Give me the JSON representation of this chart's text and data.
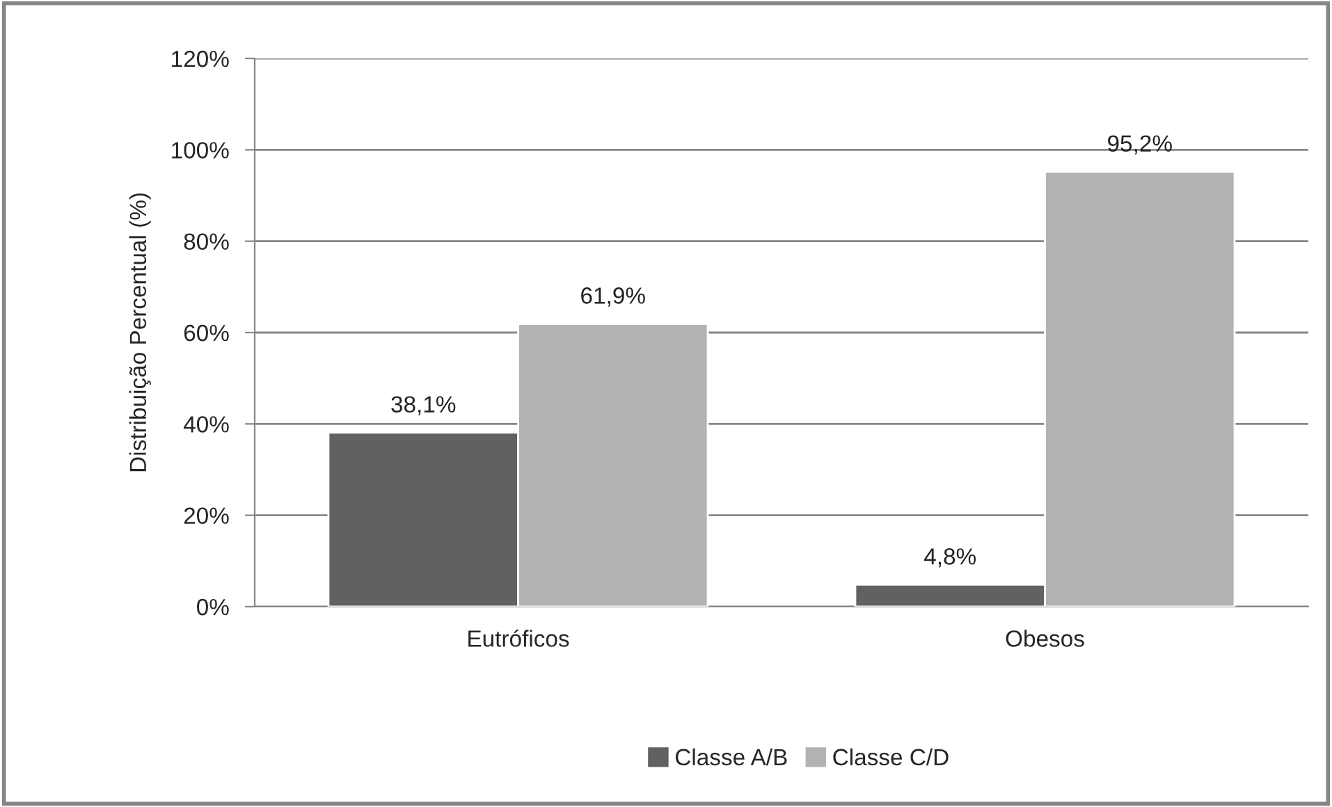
{
  "chart_data": {
    "type": "bar",
    "ylabel": "Distribuição Percentual (%)",
    "categories": [
      "Eutróficos",
      "Obesos"
    ],
    "series": [
      {
        "name": "Classe A/B",
        "color": "#616161",
        "values": [
          38.1,
          4.8
        ],
        "value_labels": [
          "38,1%",
          "4,8%"
        ]
      },
      {
        "name": "Classe C/D",
        "color": "#b3b3b3",
        "values": [
          61.9,
          95.2
        ],
        "value_labels": [
          "61,9%",
          "95,2%"
        ]
      }
    ],
    "ylim": [
      0,
      120
    ],
    "yticks": [
      {
        "value": 0,
        "label": "0%"
      },
      {
        "value": 20,
        "label": "20%"
      },
      {
        "value": 40,
        "label": "40%"
      },
      {
        "value": 60,
        "label": "60%"
      },
      {
        "value": 80,
        "label": "80%"
      },
      {
        "value": 100,
        "label": "100%"
      },
      {
        "value": 120,
        "label": "120%"
      }
    ],
    "grid": "y",
    "legend": "bottom"
  }
}
